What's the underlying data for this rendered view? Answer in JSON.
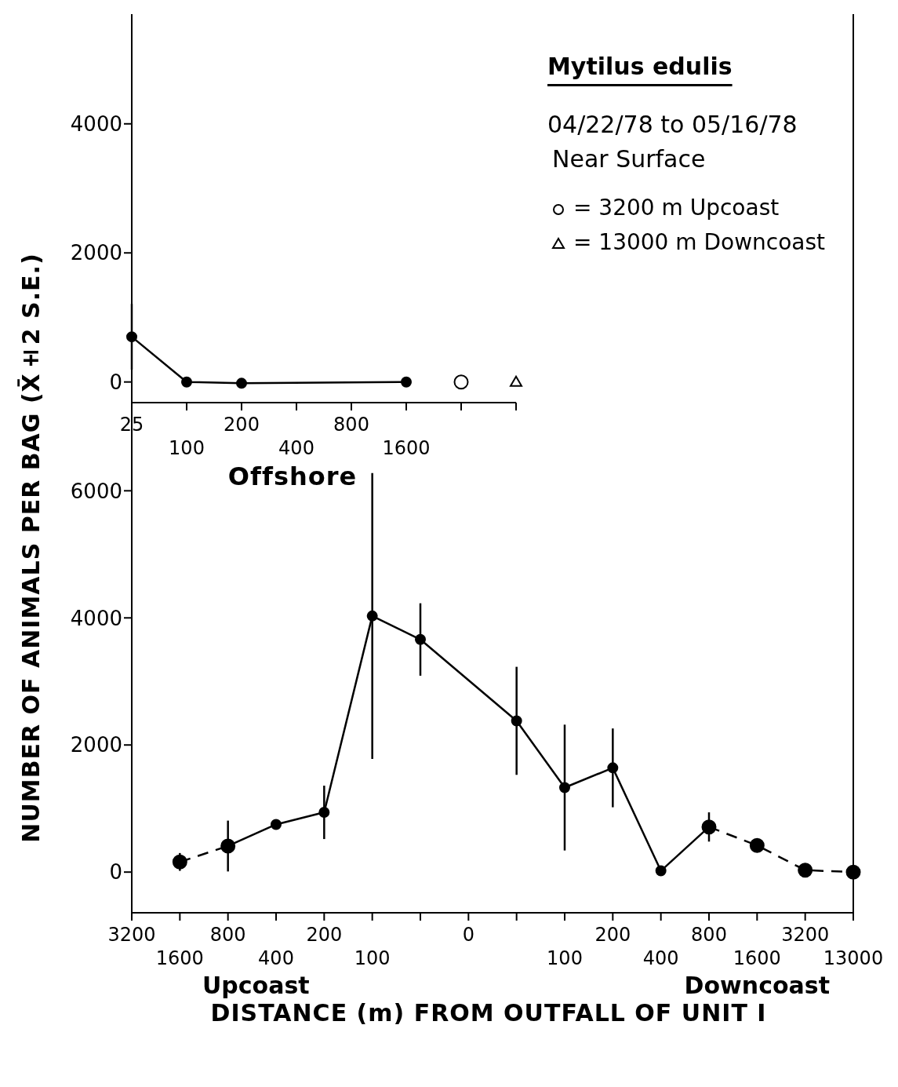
{
  "chart_data": [
    {
      "type": "line",
      "xlabel": "Offshore",
      "legend": "right",
      "categories": [
        "25",
        "100",
        "200",
        "400",
        "800",
        "1600",
        null,
        null
      ],
      "ylim": [
        -320,
        5700
      ],
      "yticks": [
        0,
        2000,
        4000
      ],
      "series": [
        {
          "color": "#000000",
          "marker": "circle",
          "line_style": "solid",
          "values": [
            700,
            0,
            -20,
            null,
            null,
            0,
            null,
            null
          ],
          "errors": [
            510,
            null,
            null,
            null,
            null,
            null,
            null,
            null
          ]
        },
        {
          "type": "scatter",
          "name": "= 3200 m Upcoast",
          "color": "#000000",
          "marker": "circle",
          "values": [
            null,
            null,
            null,
            null,
            null,
            null,
            0,
            null
          ]
        },
        {
          "type": "scatter",
          "name": "= 13000 m Downcoast",
          "color": "#000000",
          "marker": "triangle",
          "values": [
            null,
            null,
            null,
            null,
            null,
            null,
            null,
            0
          ]
        }
      ]
    },
    {
      "type": "line",
      "title": "Mytilus edulis",
      "subtitle": "04/22/78 to 05/16/78",
      "ylabel": "NUMBER OF ANIMALS PER BAG  (X̄±2 S.E.)",
      "xlabel": "DISTANCE (m) FROM OUTFALL OF UNIT I",
      "annotations": [
        "Near Surface",
        "Upcoast",
        "Downcoast"
      ],
      "categories": [
        "3200",
        "1600",
        "800",
        "400",
        "200",
        "100",
        null,
        "0",
        null,
        "100",
        "200",
        "400",
        "800",
        "1600",
        "3200",
        "13000"
      ],
      "ylim": [
        -640,
        13500
      ],
      "yticks": [
        0,
        2000,
        4000,
        6000
      ],
      "series": [
        {
          "color": "#000000",
          "marker": "circle",
          "line_style": "solid",
          "values": [
            null,
            null,
            410,
            750,
            940,
            4030,
            3660,
            null,
            2380,
            1330,
            1640,
            20,
            710,
            null,
            null,
            null
          ],
          "errors": [
            null,
            null,
            400,
            null,
            420,
            2250,
            570,
            null,
            850,
            990,
            620,
            null,
            230,
            null,
            null,
            null
          ]
        },
        {
          "color": "#000000",
          "marker": "circle",
          "line_style": "dashed",
          "values": [
            null,
            160,
            410,
            null,
            null,
            null,
            null,
            null,
            null,
            null,
            null,
            null,
            null,
            null,
            null,
            null
          ],
          "errors": [
            null,
            140,
            null,
            null,
            null,
            null,
            null,
            null,
            null,
            null,
            null,
            null,
            null,
            null,
            null,
            null
          ]
        },
        {
          "color": "#000000",
          "marker": "circle",
          "line_style": "dashed",
          "values": [
            null,
            null,
            null,
            null,
            null,
            null,
            null,
            null,
            null,
            null,
            null,
            null,
            710,
            420,
            30,
            0
          ]
        }
      ]
    }
  ]
}
